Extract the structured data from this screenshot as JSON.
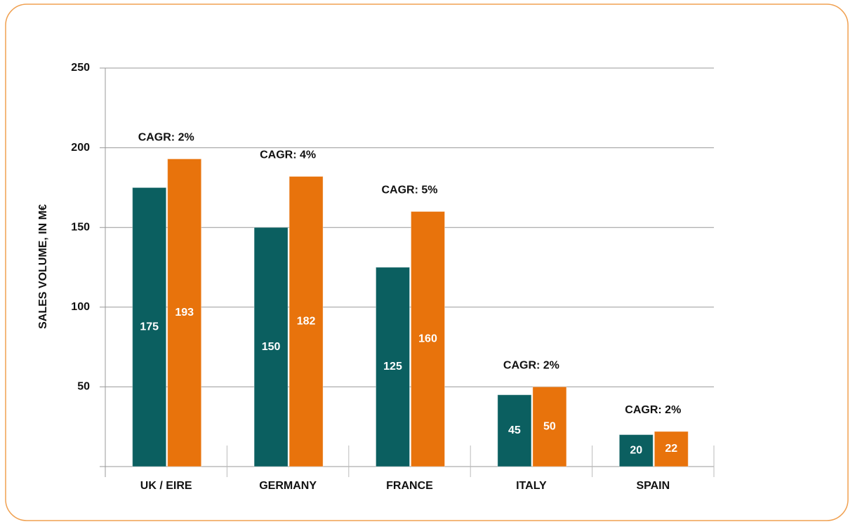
{
  "chart_data": {
    "type": "bar",
    "ylabel": "SALES VOLUME, IN M€",
    "categories": [
      "UK / EIRE",
      "GERMANY",
      "FRANCE",
      "ITALY",
      "SPAIN"
    ],
    "series": [
      {
        "color": "#0b5f60",
        "values": [
          175,
          150,
          125,
          45,
          20
        ]
      },
      {
        "color": "#e8730c",
        "values": [
          193,
          182,
          160,
          50,
          22
        ]
      }
    ],
    "annotations": [
      "CAGR: 2%",
      "CAGR: 4%",
      "CAGR: 5%",
      "CAGR: 2%",
      "CAGR: 2%"
    ],
    "ylim": [
      0,
      250
    ],
    "yticks": [
      50,
      100,
      150,
      200,
      250
    ],
    "grid": true
  }
}
